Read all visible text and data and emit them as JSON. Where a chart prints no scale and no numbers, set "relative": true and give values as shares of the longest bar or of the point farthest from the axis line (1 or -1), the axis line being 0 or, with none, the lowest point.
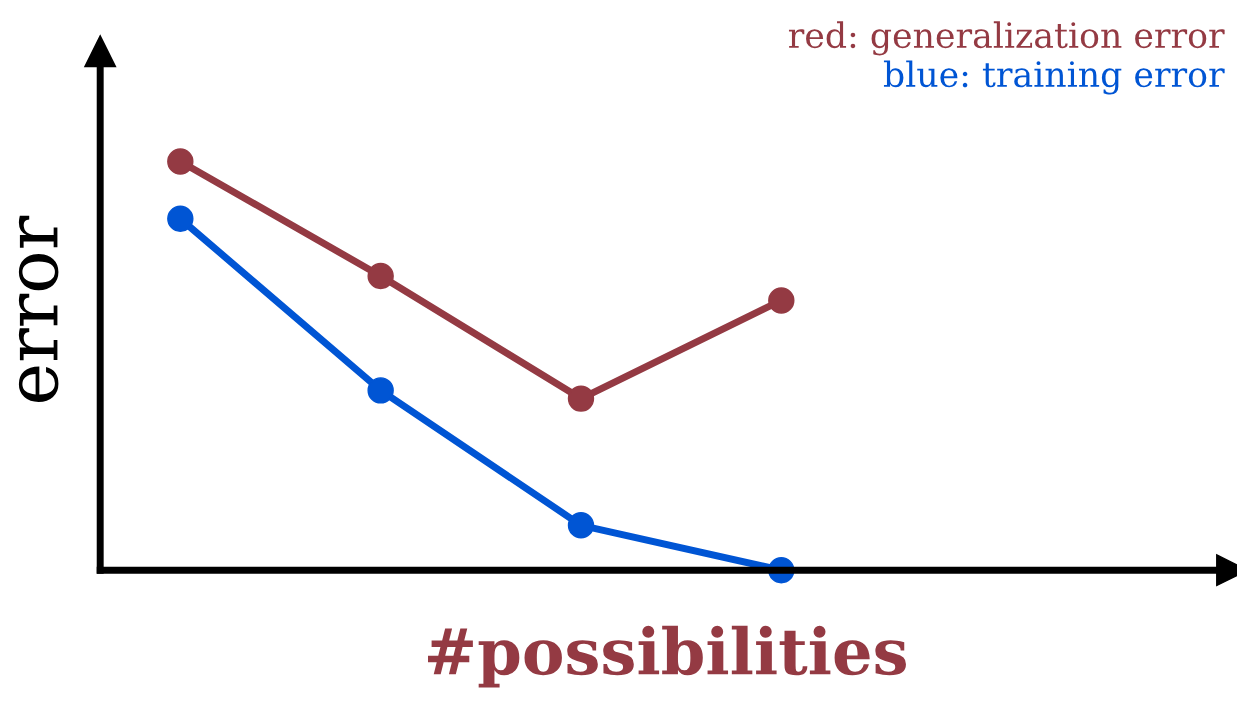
{
  "chart_data": {
    "type": "line",
    "relative": true,
    "xlabel": "#possibilities",
    "ylabel": "error",
    "categories": [
      null,
      null,
      null,
      null
    ],
    "series": [
      {
        "name": "red: generalization error",
        "color": "#943a43",
        "values": [
          1,
          0.72,
          0.42,
          0.66
        ]
      },
      {
        "name": "blue: training error",
        "color": "#0055d4",
        "values": [
          0.86,
          0.44,
          0.11,
          0.0
        ]
      }
    ],
    "marker": "circle",
    "line_style": "solid",
    "grid": false,
    "tick_labels": false
  }
}
